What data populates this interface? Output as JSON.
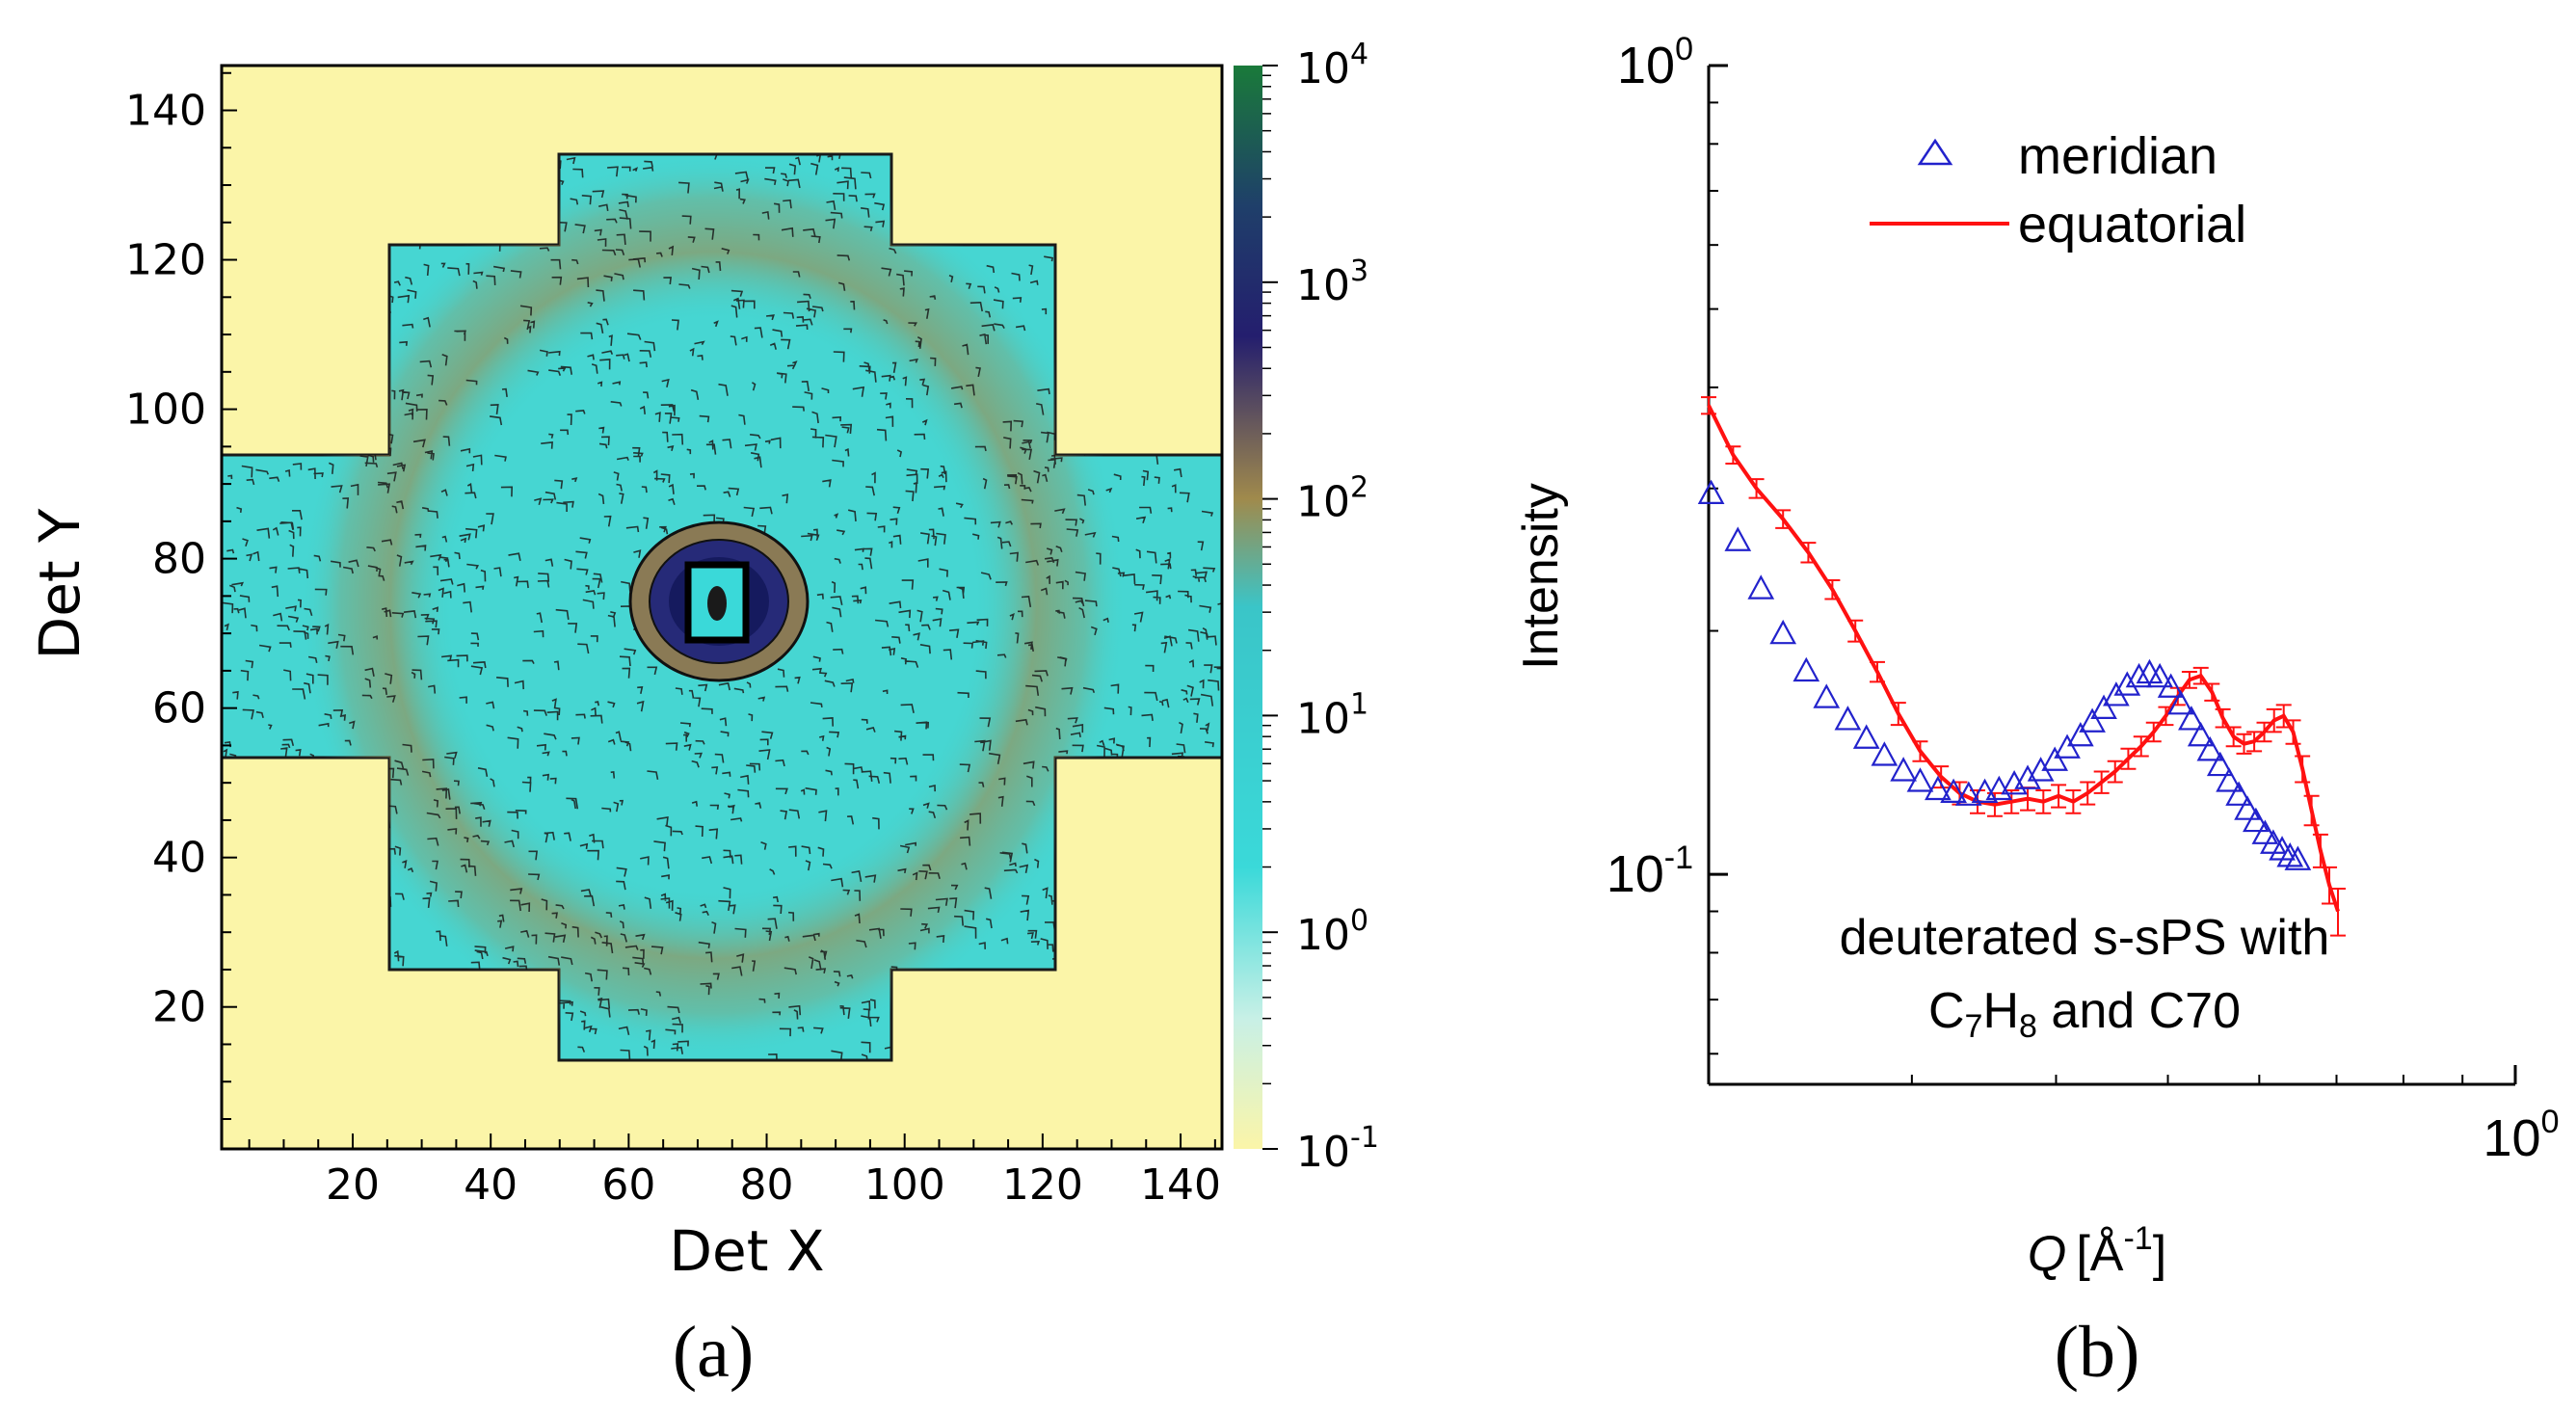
{
  "chart_data": [
    {
      "panel_label": "(a)",
      "type": "heatmap",
      "xlabel": "Det X",
      "ylabel": "Det Y",
      "xlim": [
        1,
        146
      ],
      "ylim": [
        1,
        146
      ],
      "x_ticks": [
        20,
        40,
        60,
        80,
        100,
        120,
        140
      ],
      "y_ticks": [
        20,
        40,
        60,
        80,
        100,
        120,
        140
      ],
      "colorbar": {
        "scale": "log",
        "range": [
          0.1,
          10000
        ],
        "ticks": [
          {
            "base": "10",
            "exp": "4",
            "value": 10000
          },
          {
            "base": "10",
            "exp": "3",
            "value": 1000
          },
          {
            "base": "10",
            "exp": "2",
            "value": 100
          },
          {
            "base": "10",
            "exp": "1",
            "value": 10
          },
          {
            "base": "10",
            "exp": "0",
            "value": 1
          },
          {
            "base": "10",
            "exp": "-1",
            "value": 0.1
          }
        ],
        "colors": [
          "#fbf5a8",
          "#3ad9d9",
          "#9c8a50",
          "#231d6e",
          "#1d7a3a"
        ]
      },
      "detector_region": "cross-shaped area with data, beam stop near (71, 72)",
      "features": [
        "diffuse scattering ring centered near (71, 70)",
        "beam stop near center"
      ]
    },
    {
      "panel_label": "(b)",
      "type": "scatter",
      "xlabel": "Q [Å",
      "xlabel_sup": "-1",
      "xlabel_end": "]",
      "ylabel": "Intensity",
      "xscale": "log",
      "yscale": "log",
      "xlim": [
        0.2,
        1.0
      ],
      "ylim": [
        0.055,
        1.0
      ],
      "x_tick_labels": [
        {
          "base": "10",
          "exp": "0",
          "value": 1.0
        }
      ],
      "y_tick_labels": [
        {
          "base": "10",
          "exp": "0",
          "value": 1.0
        },
        {
          "base": "10",
          "exp": "-1",
          "value": 0.1
        }
      ],
      "legend_position": "top-right",
      "annotation": {
        "line1": "deuterated s-sPS with",
        "line2_a": "C",
        "line2_b": "7",
        "line2_c": "H",
        "line2_d": "8",
        "line2_e": " and C70"
      },
      "series": [
        {
          "name": "meridian",
          "marker": "open-triangle",
          "color": "#2222cc",
          "x": [
            0.201,
            0.212,
            0.222,
            0.232,
            0.243,
            0.253,
            0.264,
            0.274,
            0.284,
            0.295,
            0.305,
            0.316,
            0.326,
            0.336,
            0.347,
            0.357,
            0.368,
            0.378,
            0.388,
            0.399,
            0.409,
            0.42,
            0.43,
            0.44,
            0.451,
            0.461,
            0.472,
            0.482,
            0.492,
            0.503,
            0.513,
            0.524,
            0.534,
            0.544,
            0.555,
            0.565,
            0.576,
            0.586,
            0.596,
            0.607,
            0.617,
            0.628,
            0.638,
            0.648
          ],
          "y": [
            0.295,
            0.258,
            0.225,
            0.198,
            0.178,
            0.165,
            0.155,
            0.147,
            0.14,
            0.134,
            0.13,
            0.127,
            0.126,
            0.125,
            0.126,
            0.127,
            0.129,
            0.131,
            0.134,
            0.138,
            0.143,
            0.148,
            0.154,
            0.16,
            0.166,
            0.171,
            0.175,
            0.177,
            0.175,
            0.17,
            0.162,
            0.155,
            0.148,
            0.142,
            0.136,
            0.13,
            0.125,
            0.12,
            0.116,
            0.112,
            0.109,
            0.107,
            0.105,
            0.104
          ]
        },
        {
          "name": "equatorial",
          "marker": "line-with-errorbars",
          "color": "#ff1111",
          "x": [
            0.2,
            0.21,
            0.22,
            0.232,
            0.244,
            0.256,
            0.268,
            0.28,
            0.292,
            0.305,
            0.318,
            0.33,
            0.342,
            0.354,
            0.366,
            0.378,
            0.39,
            0.402,
            0.414,
            0.426,
            0.438,
            0.45,
            0.462,
            0.474,
            0.486,
            0.498,
            0.51,
            0.522,
            0.534,
            0.546,
            0.558,
            0.57,
            0.582,
            0.594,
            0.606,
            0.618,
            0.63,
            0.642,
            0.654,
            0.666,
            0.678,
            0.69,
            0.702
          ],
          "y": [
            0.38,
            0.33,
            0.3,
            0.275,
            0.25,
            0.225,
            0.2,
            0.178,
            0.158,
            0.142,
            0.132,
            0.126,
            0.123,
            0.122,
            0.123,
            0.124,
            0.123,
            0.125,
            0.123,
            0.126,
            0.13,
            0.134,
            0.139,
            0.144,
            0.15,
            0.157,
            0.166,
            0.174,
            0.176,
            0.168,
            0.156,
            0.148,
            0.145,
            0.146,
            0.15,
            0.155,
            0.157,
            0.15,
            0.135,
            0.12,
            0.107,
            0.097,
            0.09
          ],
          "err": [
            0.009,
            0.008,
            0.008,
            0.007,
            0.007,
            0.006,
            0.006,
            0.005,
            0.005,
            0.004,
            0.004,
            0.004,
            0.004,
            0.004,
            0.004,
            0.004,
            0.004,
            0.004,
            0.004,
            0.004,
            0.004,
            0.004,
            0.004,
            0.004,
            0.004,
            0.004,
            0.004,
            0.004,
            0.004,
            0.004,
            0.004,
            0.004,
            0.004,
            0.004,
            0.004,
            0.005,
            0.005,
            0.005,
            0.005,
            0.005,
            0.005,
            0.005,
            0.006
          ]
        }
      ]
    }
  ]
}
